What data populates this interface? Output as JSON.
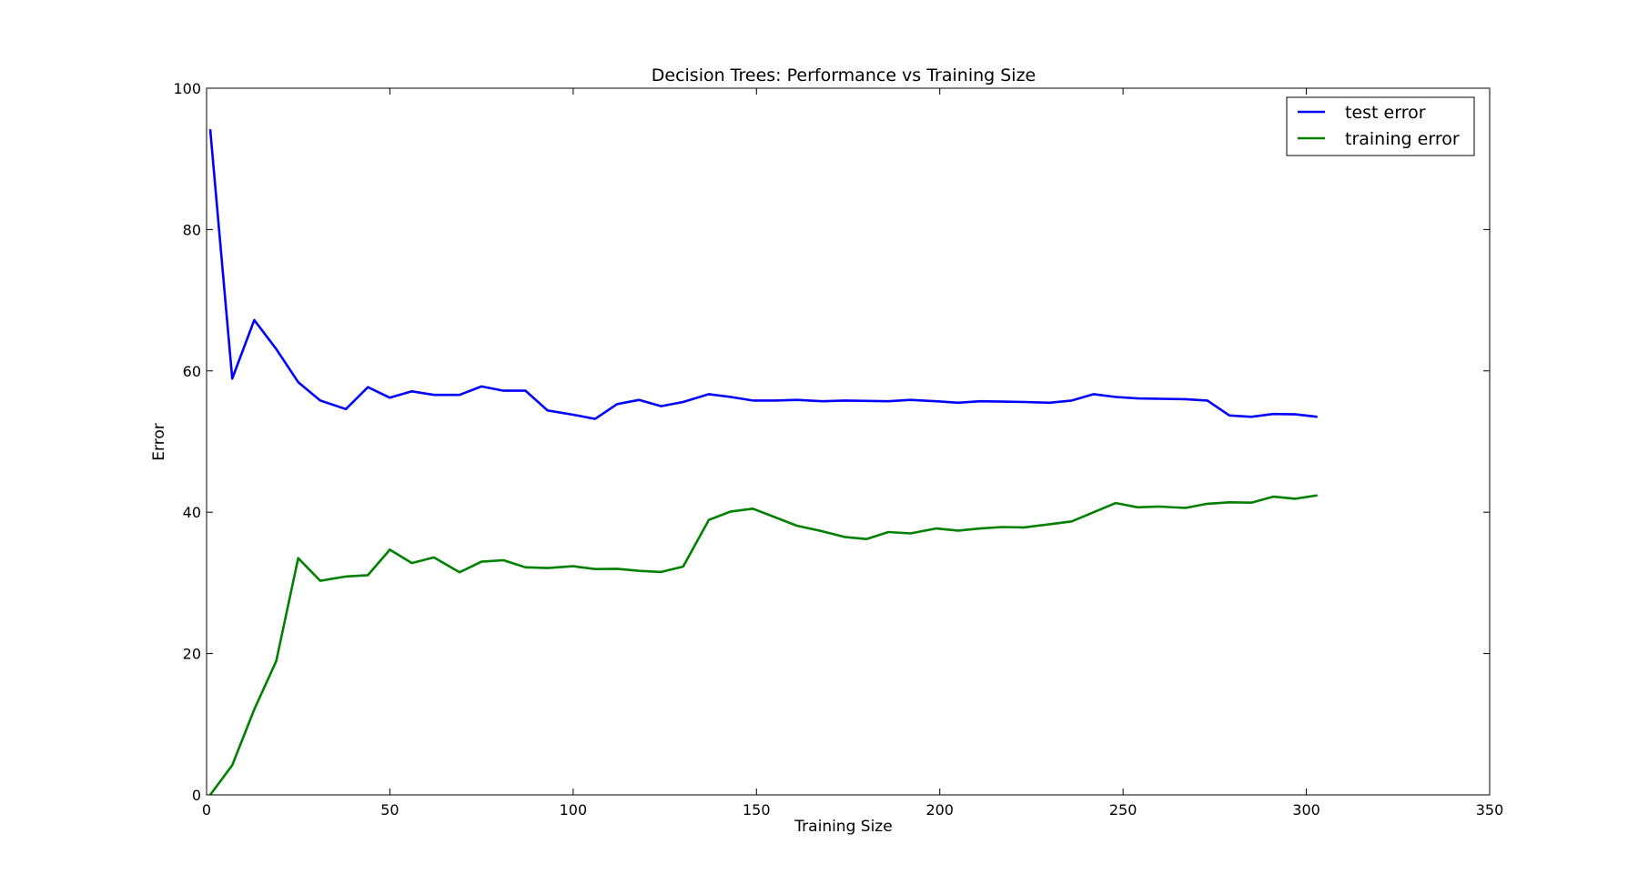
{
  "chart_data": {
    "type": "line",
    "title": "Decision Trees: Performance vs Training Size",
    "xlabel": "Training Size",
    "ylabel": "Error",
    "xlim": [
      0,
      350
    ],
    "ylim": [
      0,
      100
    ],
    "xticks": [
      0,
      50,
      100,
      150,
      200,
      250,
      300,
      350
    ],
    "yticks": [
      0,
      20,
      40,
      60,
      80,
      100
    ],
    "grid": false,
    "legend": "top-right",
    "series": [
      {
        "name": "test error",
        "color": "#0000ff",
        "x": [
          1,
          7,
          13,
          19,
          25,
          31,
          38,
          44,
          50,
          56,
          62,
          69,
          75,
          81,
          87,
          93,
          100,
          106,
          112,
          118,
          124,
          130,
          137,
          143,
          149,
          155,
          161,
          168,
          174,
          180,
          186,
          192,
          199,
          205,
          211,
          217,
          223,
          230,
          236,
          242,
          248,
          254,
          260,
          267,
          273,
          279,
          285,
          291,
          297,
          303
        ],
        "y": [
          94.2,
          58.9,
          67.2,
          63.1,
          58.4,
          55.8,
          54.6,
          57.7,
          56.2,
          57.1,
          56.6,
          56.6,
          57.8,
          57.2,
          57.2,
          54.4,
          53.8,
          53.2,
          55.3,
          55.9,
          55.0,
          55.6,
          56.7,
          56.3,
          55.8,
          55.8,
          55.9,
          55.7,
          55.8,
          55.75,
          55.7,
          55.9,
          55.7,
          55.5,
          55.7,
          55.65,
          55.6,
          55.5,
          55.8,
          56.7,
          56.3,
          56.1,
          56.05,
          56.0,
          55.8,
          53.7,
          53.5,
          53.9,
          53.85,
          53.5
        ]
      },
      {
        "name": "training error",
        "color": "#008000",
        "x": [
          1,
          7,
          13,
          19,
          25,
          31,
          38,
          44,
          50,
          56,
          62,
          69,
          75,
          81,
          87,
          93,
          100,
          106,
          112,
          118,
          124,
          130,
          137,
          143,
          149,
          155,
          161,
          168,
          174,
          180,
          186,
          192,
          199,
          205,
          211,
          217,
          223,
          230,
          236,
          242,
          248,
          254,
          260,
          267,
          273,
          279,
          285,
          291,
          297,
          303
        ],
        "y": [
          0,
          4.2,
          12.1,
          18.9,
          33.5,
          30.3,
          30.9,
          31.1,
          34.7,
          32.8,
          33.6,
          31.5,
          33.0,
          33.2,
          32.2,
          32.1,
          32.35,
          31.95,
          32.0,
          31.7,
          31.55,
          32.3,
          38.9,
          40.1,
          40.5,
          39.3,
          38.1,
          37.3,
          36.5,
          36.2,
          37.2,
          37.0,
          37.7,
          37.4,
          37.7,
          37.9,
          37.85,
          38.3,
          38.7,
          40.0,
          41.3,
          40.7,
          40.8,
          40.6,
          41.2,
          41.4,
          41.35,
          42.2,
          41.9,
          42.4
        ]
      }
    ]
  }
}
